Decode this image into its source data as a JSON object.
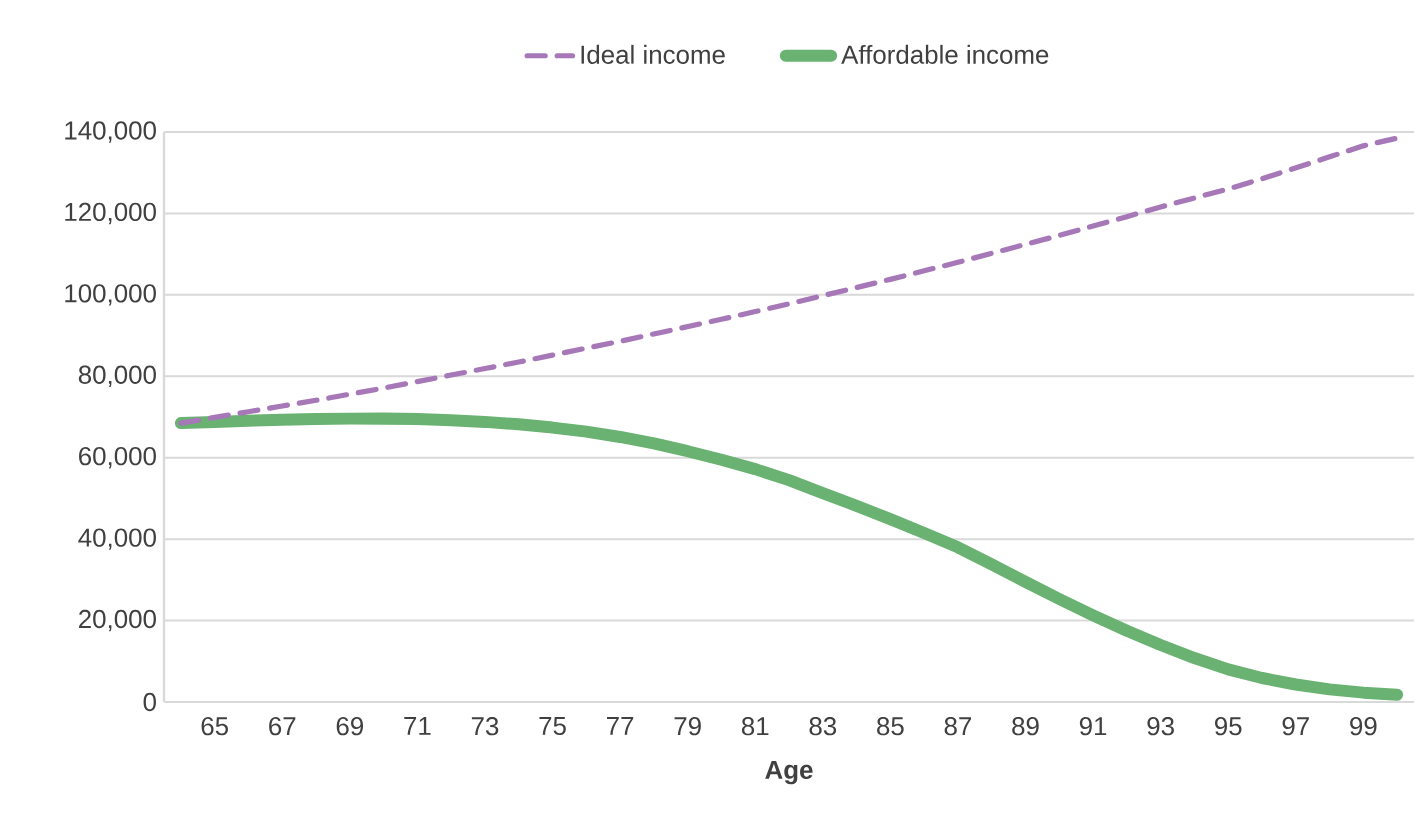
{
  "chart_data": {
    "type": "line",
    "xlabel": "Age",
    "categories": [
      null,
      "65",
      null,
      "67",
      null,
      "69",
      null,
      "71",
      null,
      "73",
      null,
      "75",
      null,
      "77",
      null,
      "79",
      null,
      "81",
      null,
      "83",
      null,
      "85",
      null,
      "87",
      null,
      "89",
      null,
      "91",
      null,
      "93",
      null,
      "95",
      null,
      "97",
      null,
      "99",
      null
    ],
    "series": [
      {
        "name": "Ideal income",
        "color": "#a678b8",
        "line_style": "dashed",
        "values": [
          68500,
          69900,
          71300,
          72700,
          74100,
          75600,
          77100,
          78700,
          80300,
          81900,
          83500,
          85200,
          86900,
          88600,
          90400,
          92200,
          94000,
          95900,
          97800,
          99800,
          101800,
          103800,
          105900,
          108000,
          110200,
          112400,
          114600,
          116900,
          119200,
          121600,
          123800,
          126000,
          128500,
          131200,
          133900,
          136600,
          138500
        ]
      },
      {
        "name": "Affordable income",
        "color": "#6ab272",
        "line_style": "solid",
        "values": [
          68500,
          68800,
          69100,
          69300,
          69500,
          69600,
          69600,
          69500,
          69200,
          68800,
          68200,
          67400,
          66400,
          65100,
          63500,
          61600,
          59500,
          57200,
          54500,
          51300,
          48200,
          44900,
          41500,
          38000,
          33800,
          29500,
          25300,
          21300,
          17500,
          14000,
          10800,
          8000,
          5900,
          4300,
          3100,
          2300,
          1800
        ]
      }
    ],
    "ylim": [
      0,
      140000
    ],
    "yticks": [
      0,
      {
        "value": 20000,
        "label": "20,000"
      },
      {
        "value": 40000,
        "label": "40,000"
      },
      {
        "value": 60000,
        "label": "60,000"
      },
      {
        "value": 80000,
        "label": "80,000"
      },
      {
        "value": 100000,
        "label": "100,000"
      },
      {
        "value": 120000,
        "label": "120,000"
      },
      {
        "value": 140000,
        "label": "140,000"
      }
    ],
    "grid": "y",
    "legend": "top",
    "marker": "none"
  }
}
